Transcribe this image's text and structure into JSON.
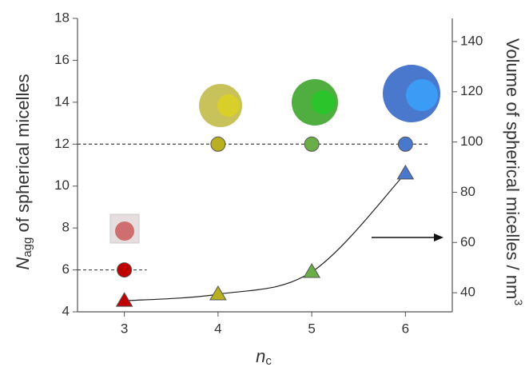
{
  "chart_data": {
    "type": "scatter",
    "xlabel": {
      "symbol": "n",
      "subscript": "c"
    },
    "ylabel": {
      "symbol": "N",
      "subscript": "agg",
      "text": " of spherical micelles"
    },
    "y2label": {
      "text": "Volume of spherical micelles / nm",
      "superscript": "3"
    },
    "xlim": [
      2.5,
      6.5
    ],
    "xticks": [
      3,
      4,
      5,
      6
    ],
    "ylim": [
      4,
      18
    ],
    "yticks": [
      4,
      6,
      8,
      10,
      12,
      14,
      16,
      18
    ],
    "y2lim": [
      32.4,
      149.2
    ],
    "y2ticks": [
      40,
      60,
      80,
      100,
      120,
      140
    ],
    "series": [
      {
        "marker": "circle",
        "x": [
          3,
          4,
          5,
          6
        ],
        "values": [
          6,
          12,
          12,
          12
        ],
        "colors": [
          "#c00000",
          "#b8b020",
          "#6aae48",
          "#4a78cc"
        ],
        "reference_lines": true
      },
      {
        "marker": "triangle",
        "axis": "y2",
        "x": [
          3,
          4,
          5,
          6
        ],
        "values": [
          36.8,
          39.4,
          48.3,
          87.5
        ],
        "colors": [
          "#c00000",
          "#b8b020",
          "#6aae48",
          "#4a78cc"
        ],
        "fit": true
      }
    ]
  }
}
